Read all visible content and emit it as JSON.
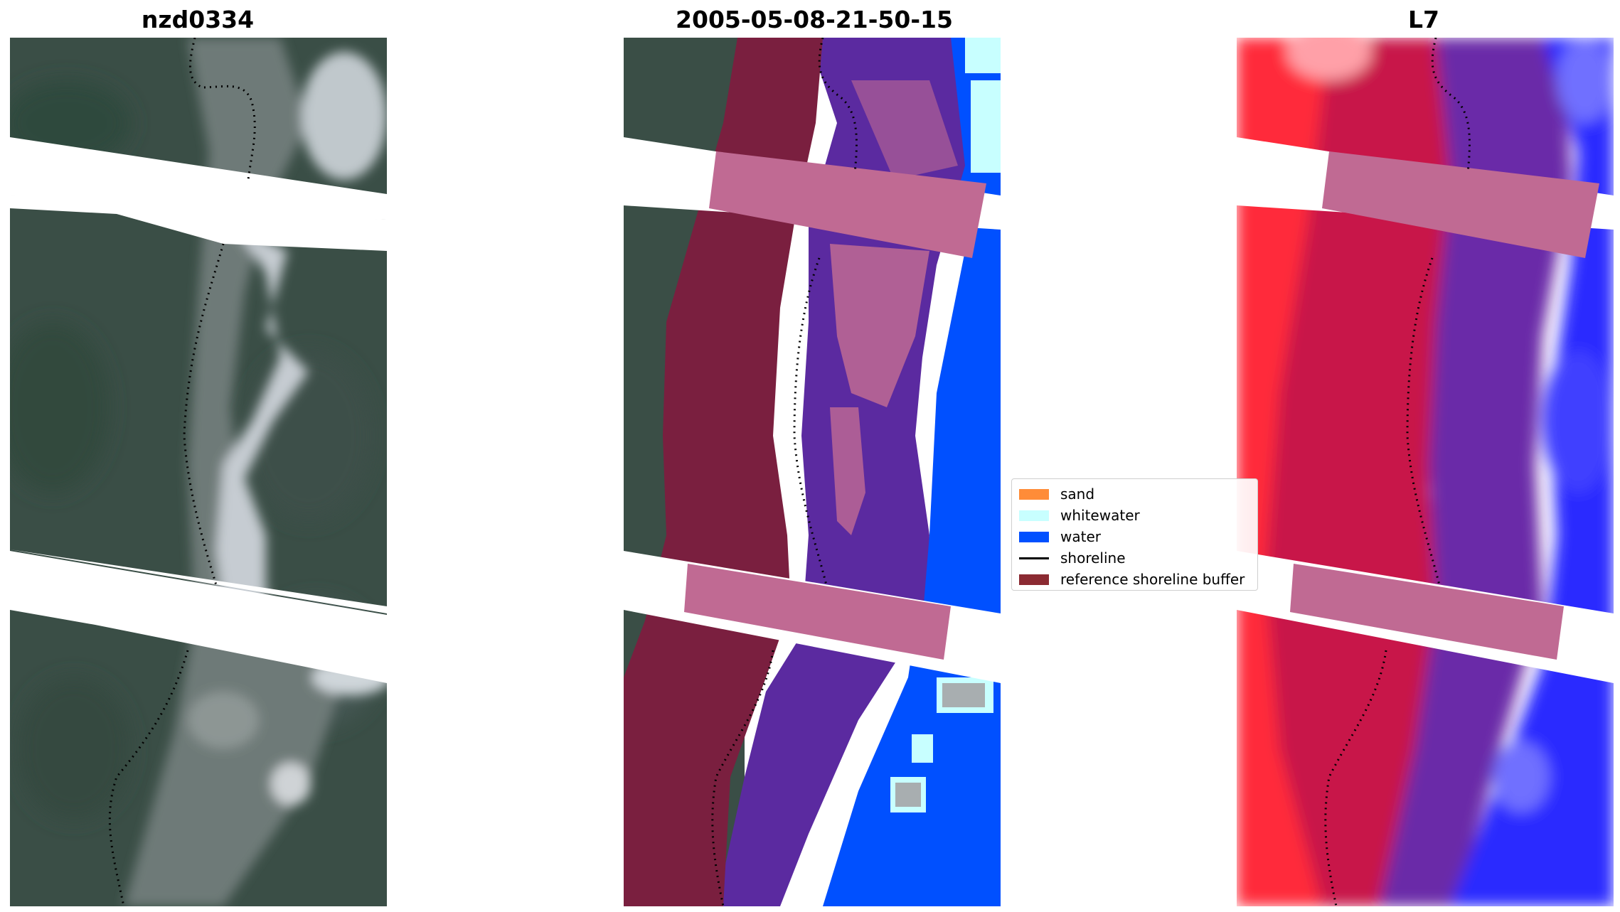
{
  "panels": {
    "left_title": "nzd0334",
    "middle_title": "2005-05-08-21-50-15",
    "right_title": "L7"
  },
  "legend": {
    "items": [
      {
        "label": "sand",
        "color": "#ff8c38",
        "kind": "patch"
      },
      {
        "label": "whitewater",
        "color": "#c8ffff",
        "kind": "patch"
      },
      {
        "label": "water",
        "color": "#0050ff",
        "kind": "patch"
      },
      {
        "label": "shoreline",
        "color": "#000000",
        "kind": "line"
      },
      {
        "label": "reference shoreline buffer",
        "color": "#8b2a32",
        "kind": "patch"
      }
    ]
  },
  "colors": {
    "forest": "#3b4f47",
    "river_gray": "#8e9694",
    "whitewater": "#c8ffff",
    "water": "#0050ff",
    "buffer": "#7a1f3f",
    "mask_pink": "#c06a93",
    "purple": "#5b2aa0",
    "index_red": "#ff2a3a",
    "index_crimson": "#c81848",
    "index_blue": "#2a2aff"
  }
}
